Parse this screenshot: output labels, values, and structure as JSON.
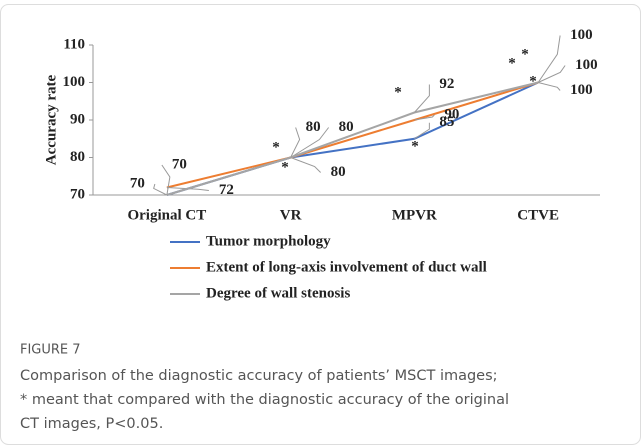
{
  "chart_data": {
    "type": "line",
    "ylabel": "Accuracy rate",
    "categories": [
      "Original CT",
      "VR",
      "MPVR",
      "CTVE"
    ],
    "series": [
      {
        "name": "Tumor morphology",
        "color": "#4472c4",
        "values": [
          70,
          80,
          85,
          100
        ]
      },
      {
        "name": "Extent of long-axis involvement of duct wall",
        "color": "#ed7d31",
        "values": [
          72,
          80,
          90,
          100
        ]
      },
      {
        "name": "Degree of wall stenosis",
        "color": "#a5a5a5",
        "values": [
          70,
          80,
          92,
          100
        ]
      }
    ],
    "ylim": [
      70,
      110
    ],
    "yticks": [
      70,
      80,
      90,
      100,
      110
    ],
    "grid": false,
    "annotations": [
      "*",
      "*",
      "*",
      "*",
      "*",
      "*",
      "*"
    ]
  },
  "caption": {
    "label": "FIGURE 7",
    "lines": [
      "Comparison of the diagnostic accuracy of patients’ MSCT images;",
      "* meant that compared with the diagnostic accuracy of the original",
      "CT images, P<0.05."
    ]
  }
}
